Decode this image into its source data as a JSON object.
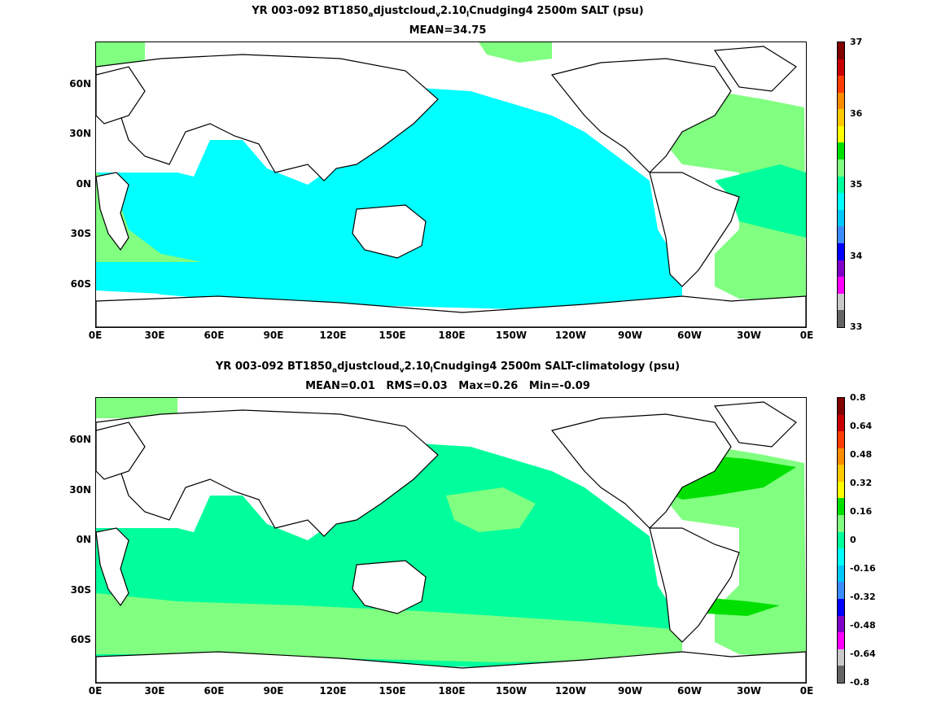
{
  "panels": [
    {
      "title_parts": [
        "YR 003-092 BT1850",
        "a",
        "djustcloud",
        "v",
        "2.10",
        "l",
        "Cnudging4 2500m SALT (psu)"
      ],
      "subtitle": "MEAN=34.75",
      "colorbar": {
        "labels": [
          "37",
          "36",
          "35",
          "34",
          "33"
        ],
        "colors": [
          "#800000",
          "#c80000",
          "#ff3c00",
          "#ff8c00",
          "#ffc800",
          "#ffff00",
          "#00e000",
          "#80ff80",
          "#00ff9c",
          "#00ffff",
          "#00c8ff",
          "#3c8cff",
          "#0000ff",
          "#8000c8",
          "#ff00ff",
          "#c8c8c8",
          "#646464"
        ]
      }
    },
    {
      "title_parts": [
        "YR 003-092 BT1850",
        "a",
        "djustcloud",
        "v",
        "2.10",
        "l",
        "Cnudging4 2500m SALT-climatology (psu)"
      ],
      "subtitle": "MEAN=0.01   RMS=0.03   Max=0.26   Min=-0.09",
      "colorbar": {
        "labels": [
          "0.8",
          "0.64",
          "0.48",
          "0.32",
          "0.16",
          "0",
          "-0.16",
          "-0.32",
          "-0.48",
          "-0.64",
          "-0.8"
        ],
        "colors": [
          "#800000",
          "#c80000",
          "#ff3c00",
          "#ff8c00",
          "#ffc800",
          "#ffff00",
          "#00e000",
          "#80ff80",
          "#00ff9c",
          "#00ffff",
          "#00c8ff",
          "#3c8cff",
          "#0000ff",
          "#8000c8",
          "#ff00ff",
          "#c8c8c8",
          "#646464"
        ]
      }
    }
  ],
  "axes": {
    "x_ticks": [
      "0E",
      "30E",
      "60E",
      "90E",
      "120E",
      "150E",
      "180E",
      "150W",
      "120W",
      "90W",
      "60W",
      "30W",
      "0E"
    ],
    "y_ticks": [
      "60N",
      "30N",
      "0N",
      "30S",
      "60S"
    ]
  },
  "field_colors": {
    "cyan": "#00ffff",
    "lightgreen": "#80ff80",
    "seagreen": "#00ff9c",
    "green": "#00e000",
    "yellow": "#ffff00"
  }
}
